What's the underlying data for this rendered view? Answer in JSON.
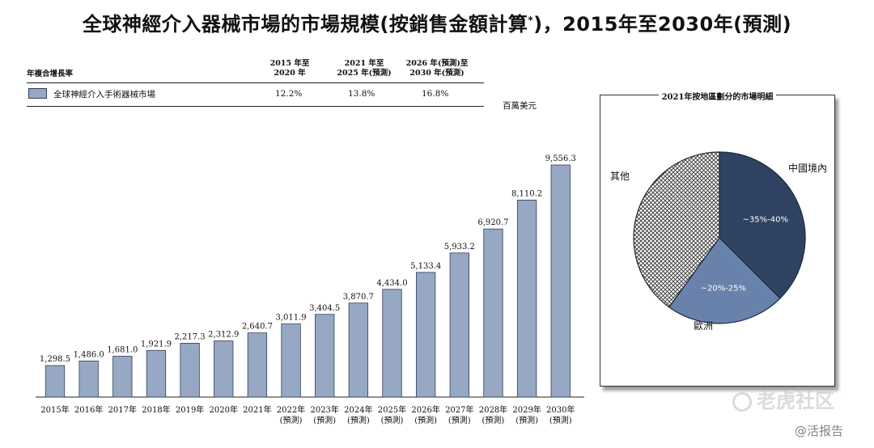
{
  "title": "全球神經介入器械市場的市場規模(按銷售金額計算",
  "title_mark": "*",
  "title_suffix": ")，2015年至2030年(預測)",
  "cagr_table": {
    "row_label": "年複合增長率",
    "periods": [
      {
        "line1": "2015 年至",
        "line2": "2020 年"
      },
      {
        "line1": "2021 年至",
        "line2": "2025 年(預測)"
      },
      {
        "line1": "2026 年(預測)至",
        "line2": "2030 年(預測)"
      }
    ],
    "series_label": "全球神經介入手術器械市場",
    "values": [
      "12.2%",
      "13.8%",
      "16.8%"
    ]
  },
  "unit": "百萬美元",
  "chart_data": [
    {
      "type": "bar",
      "categories": [
        "2015年",
        "2016年",
        "2017年",
        "2018年",
        "2019年",
        "2020年",
        "2021年",
        "2022年",
        "2023年",
        "2024年",
        "2025年",
        "2026年",
        "2027年",
        "2028年",
        "2029年",
        "2030年"
      ],
      "category_sublabels": [
        "",
        "",
        "",
        "",
        "",
        "",
        "",
        "(預測)",
        "(預測)",
        "(預測)",
        "(預測)",
        "(預測)",
        "(預測)",
        "(預測)",
        "(預測)",
        "(預測)"
      ],
      "values": [
        1298.5,
        1486.0,
        1681.0,
        1921.9,
        2217.3,
        2312.9,
        2640.7,
        3011.9,
        3404.5,
        3870.7,
        4434.0,
        5133.4,
        5933.2,
        6920.7,
        8110.2,
        9556.3
      ],
      "value_labels": [
        "1,298.5",
        "1,486.0",
        "1,681.0",
        "1,921.9",
        "2,217.3",
        "2,312.9",
        "2,640.7",
        "3,011.9",
        "3,404.5",
        "3,870.7",
        "4,434.0",
        "5,133.4",
        "5,933.2",
        "6,920.7",
        "8,110.2",
        "9,556.3"
      ],
      "unit": "百萬美元",
      "color": "#97a8c5",
      "stroke": "#2f3e58",
      "grid": false
    },
    {
      "type": "pie",
      "title": "2021年按地區劃分的市場明細",
      "slices": [
        {
          "name": "中國境內",
          "label": "~35%-40%",
          "value": 37.5,
          "color": "#2f4262",
          "pattern": "solid"
        },
        {
          "name": "歐洲",
          "label": "~20%-25%",
          "value": 22.5,
          "color": "#6882ab",
          "pattern": "solid"
        },
        {
          "name": "其他",
          "label": "",
          "value": 40.0,
          "color": "#ffffff",
          "pattern": "crosshatch"
        }
      ]
    }
  ],
  "watermark": {
    "brand": "老虎社区",
    "handle": "@活报告"
  }
}
